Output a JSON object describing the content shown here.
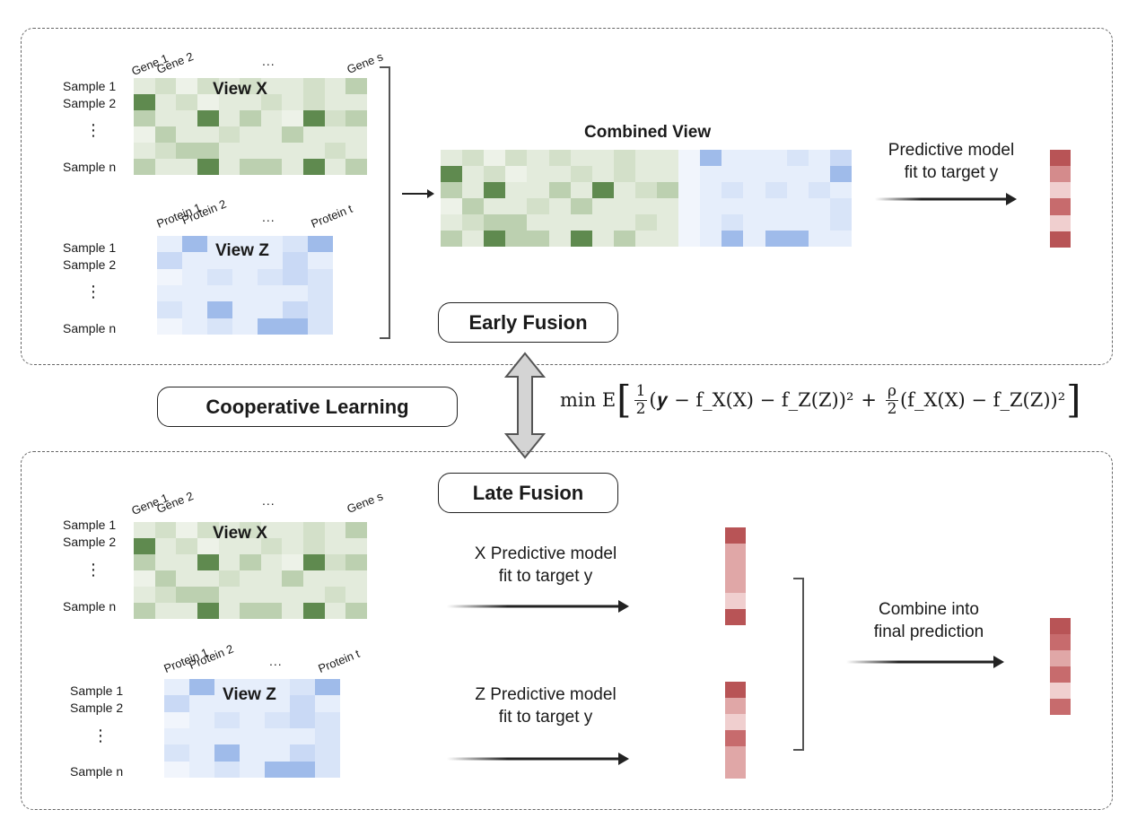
{
  "early_panel": {
    "view_x": {
      "title": "View X",
      "col_labels": [
        "Gene 1",
        "Gene 2",
        "...",
        "Gene s"
      ],
      "row_labels": [
        "Sample 1",
        "Sample 2",
        "⋮",
        "Sample n"
      ]
    },
    "view_z": {
      "title": "View Z",
      "col_labels": [
        "Protein 1",
        "Protein 2",
        "...",
        "Protein t"
      ],
      "row_labels": [
        "Sample 1",
        "Sample 2",
        "⋮",
        "Sample n"
      ]
    },
    "combined_title": "Combined View",
    "predictive_text": [
      "Predictive model",
      "fit to target y"
    ],
    "fusion_label": "Early Fusion"
  },
  "middle": {
    "cooperative_label": "Cooperative Learning",
    "formula": {
      "prefix": "min E",
      "frac1_num": "1",
      "frac1_den": "2",
      "term1": "(𝒚 − f_X(X) − f_Z(Z))²",
      "plus": "+",
      "frac2_num": "ρ",
      "frac2_den": "2",
      "term2": "(f_X(X) − f_Z(Z))²"
    }
  },
  "late_panel": {
    "fusion_label": "Late Fusion",
    "view_x": {
      "title": "View X",
      "col_labels": [
        "Gene 1",
        "Gene 2",
        "...",
        "Gene s"
      ],
      "row_labels": [
        "Sample 1",
        "Sample 2",
        "⋮",
        "Sample n"
      ]
    },
    "view_z": {
      "title": "View Z",
      "col_labels": [
        "Protein 1",
        "Protein 2",
        "...",
        "Protein t"
      ],
      "row_labels": [
        "Sample 1",
        "Sample 2",
        "⋮",
        "Sample n"
      ]
    },
    "x_predictive_text": [
      "X Predictive model",
      "fit to target y"
    ],
    "z_predictive_text": [
      "Z Predictive model",
      "fit to target y"
    ],
    "combine_text": [
      "Combine into",
      "final prediction"
    ]
  },
  "colors": {
    "green_palette": [
      "#e3ebdc",
      "#d3e0c9",
      "#bcd0b0",
      "#5f8a4f",
      "#edf2e8"
    ],
    "blue_palette": [
      "#e6eefb",
      "#c9d9f5",
      "#9fbbea",
      "#d8e4f8",
      "#f1f5fc"
    ],
    "red_palette": [
      "#b85456",
      "#d48b8c",
      "#f0cfcf",
      "#e0a7a7",
      "#c76b6d"
    ]
  }
}
